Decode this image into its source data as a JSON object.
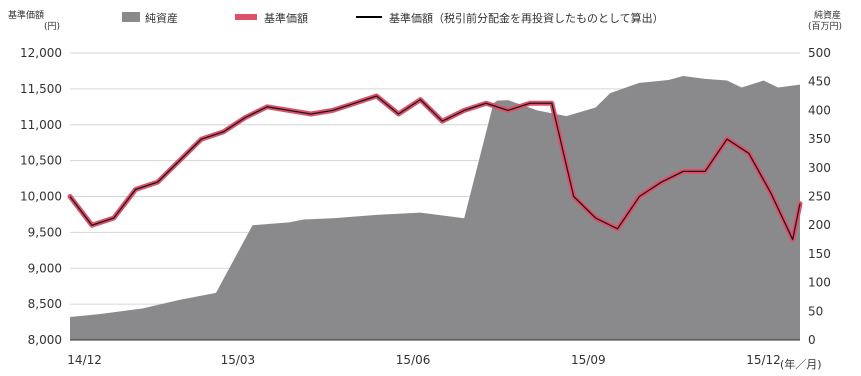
{
  "chart_data": {
    "type": "area",
    "left_axis": {
      "label": "基準価額",
      "unit": "(円)",
      "ylim": [
        8000,
        12000
      ],
      "ticks": [
        "12,000",
        "11,500",
        "11,000",
        "10,500",
        "10,000",
        "9,500",
        "9,000",
        "8,500",
        "8,000"
      ],
      "tick_values": [
        12000,
        11500,
        11000,
        10500,
        10000,
        9500,
        9000,
        8500,
        8000
      ]
    },
    "right_axis": {
      "label": "純資産",
      "unit": "(百万円)",
      "ylim": [
        0,
        500
      ],
      "ticks": [
        "500",
        "450",
        "400",
        "350",
        "300",
        "250",
        "200",
        "150",
        "100",
        "50",
        "0"
      ],
      "tick_values": [
        500,
        450,
        400,
        350,
        300,
        250,
        200,
        150,
        100,
        50,
        0
      ]
    },
    "x_ticks": [
      "14/12",
      "15/03",
      "15/06",
      "15/09",
      "15/12"
    ],
    "x_unit": "(年／月)",
    "grid": true,
    "legend_position": "top",
    "legend": [
      {
        "name": "純資産",
        "color": "#8a8a8c",
        "kind": "area"
      },
      {
        "name": "基準価額",
        "color": "#e0506a",
        "kind": "line-thick"
      },
      {
        "name": "基準価額（税引前分配金を再投資したものとして算出）",
        "color": "#000000",
        "kind": "line"
      }
    ],
    "series": [
      {
        "name": "純資産",
        "axis": "right",
        "x": [
          0.0,
          0.04,
          0.1,
          0.15,
          0.2,
          0.25,
          0.3,
          0.32,
          0.36,
          0.42,
          0.48,
          0.54,
          0.58,
          0.585,
          0.6,
          0.64,
          0.66,
          0.68,
          0.72,
          0.74,
          0.78,
          0.82,
          0.84,
          0.87,
          0.9,
          0.92,
          0.95,
          0.97,
          1.0
        ],
        "values": [
          40,
          45,
          55,
          70,
          82,
          200,
          205,
          210,
          212,
          218,
          222,
          212,
          412,
          417,
          418,
          400,
          395,
          390,
          405,
          430,
          448,
          453,
          460,
          455,
          452,
          440,
          452,
          440,
          445
        ]
      },
      {
        "name": "基準価額",
        "axis": "left",
        "x": [
          0.0,
          0.03,
          0.06,
          0.09,
          0.12,
          0.15,
          0.18,
          0.21,
          0.24,
          0.27,
          0.3,
          0.33,
          0.36,
          0.39,
          0.42,
          0.45,
          0.48,
          0.51,
          0.54,
          0.57,
          0.6,
          0.63,
          0.66,
          0.69,
          0.72,
          0.75,
          0.78,
          0.81,
          0.84,
          0.87,
          0.9,
          0.93,
          0.96,
          0.99,
          1.0
        ],
        "values": [
          10000,
          9600,
          9700,
          10100,
          10200,
          10500,
          10800,
          10900,
          11100,
          11250,
          11200,
          11150,
          11200,
          11300,
          11400,
          11150,
          11350,
          11050,
          11200,
          11300,
          11200,
          11300,
          11300,
          10000,
          9700,
          9550,
          10000,
          10200,
          10350,
          10350,
          10800,
          10600,
          10050,
          9400,
          9900
        ]
      }
    ]
  }
}
